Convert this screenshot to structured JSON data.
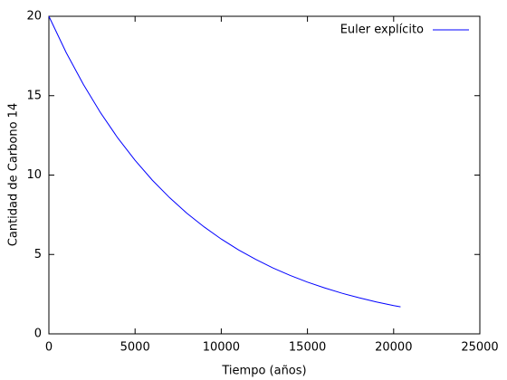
{
  "chart_data": {
    "type": "line",
    "xlabel": "Tiempo (años)",
    "ylabel": "Cantidad de Carbono 14",
    "x": [
      0,
      1000,
      2000,
      3000,
      4000,
      5000,
      6000,
      7000,
      8000,
      9000,
      10000,
      11000,
      12000,
      13000,
      14000,
      15000,
      16000,
      17000,
      18000,
      19000,
      20000,
      20400
    ],
    "series": [
      {
        "name": "Euler explícito",
        "color": "#0000ff",
        "values": [
          20,
          17.72,
          15.71,
          13.92,
          12.33,
          10.93,
          9.68,
          8.58,
          7.6,
          6.74,
          5.97,
          5.29,
          4.69,
          4.15,
          3.68,
          3.26,
          2.89,
          2.56,
          2.27,
          2.01,
          1.78,
          1.7
        ]
      }
    ],
    "xlim": [
      0,
      25000
    ],
    "xticks": [
      0,
      5000,
      10000,
      15000,
      20000,
      25000
    ],
    "ylim": [
      0,
      20
    ],
    "yticks": [
      0,
      5,
      10,
      15,
      20
    ],
    "legend": "top-right",
    "grid": false
  }
}
